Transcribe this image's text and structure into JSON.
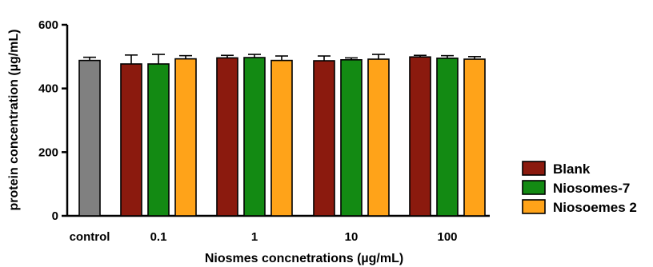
{
  "chart_data": {
    "type": "bar",
    "title": "",
    "xlabel": "Niosmes concnetrations (µg/mL)",
    "ylabel": "protein concentration (µg/mL)",
    "ylim": [
      0,
      600
    ],
    "yticks": [
      0,
      200,
      400,
      600
    ],
    "grid": false,
    "legend_position": "right",
    "control": {
      "label": "control",
      "value": 488,
      "error": 10,
      "color": "#808080"
    },
    "categories": [
      "0.1",
      "1",
      "10",
      "100"
    ],
    "series": [
      {
        "name": "Blank",
        "color": "#8B1A0E",
        "values": [
          477,
          496,
          487,
          499
        ],
        "errors": [
          28,
          8,
          15,
          5
        ]
      },
      {
        "name": "Niosomes-7",
        "color": "#138A13",
        "values": [
          477,
          497,
          490,
          495
        ],
        "errors": [
          30,
          10,
          6,
          8
        ]
      },
      {
        "name": "Niosoemes 2",
        "color": "#FFA319",
        "values": [
          493,
          488,
          492,
          492
        ],
        "errors": [
          10,
          14,
          15,
          8
        ]
      }
    ]
  }
}
